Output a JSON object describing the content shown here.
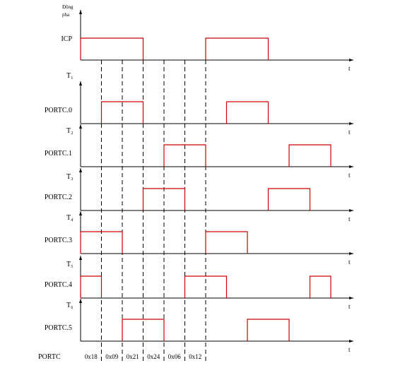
{
  "title_line1": "Đồng",
  "title_line2": "pha",
  "axis_t": "t",
  "tracks": [
    {
      "id": "icp",
      "label": "ICP",
      "t_label": "",
      "pulses": [
        [
          0,
          3
        ],
        [
          6,
          9
        ]
      ]
    },
    {
      "id": "portc0",
      "label": "PORTC.0",
      "t_label": "T₁",
      "pulses": [
        [
          1,
          3
        ],
        [
          7,
          9
        ]
      ]
    },
    {
      "id": "portc1",
      "label": "PORTC.1",
      "t_label": "T₂",
      "pulses": [
        [
          4,
          6
        ],
        [
          10,
          12
        ]
      ]
    },
    {
      "id": "portc2",
      "label": "PORTC.2",
      "t_label": "T₃",
      "pulses": [
        [
          3,
          5
        ],
        [
          9,
          11
        ]
      ]
    },
    {
      "id": "portc3",
      "label": "PORTC.3",
      "t_label": "T₄",
      "pulses": [
        [
          0,
          2
        ],
        [
          6,
          8
        ]
      ]
    },
    {
      "id": "portc4",
      "label": "PORTC.4",
      "t_label": "T₅",
      "pulses": [
        [
          0,
          1
        ],
        [
          5,
          7
        ],
        [
          11,
          12
        ]
      ]
    },
    {
      "id": "portc5",
      "label": "PORTC.5",
      "t_label": "T₆",
      "pulses": [
        [
          2,
          4
        ],
        [
          8,
          10
        ]
      ]
    }
  ],
  "portc_label": "PORTC",
  "hex_values": [
    "0x18",
    "0x09",
    "0x21",
    "0x24",
    "0x06",
    "0x12"
  ],
  "dashed_at": [
    1,
    2,
    3,
    4,
    5,
    6
  ],
  "colors": {
    "signal": "#cc0000",
    "axis": "#000000",
    "dash": "#000000"
  }
}
